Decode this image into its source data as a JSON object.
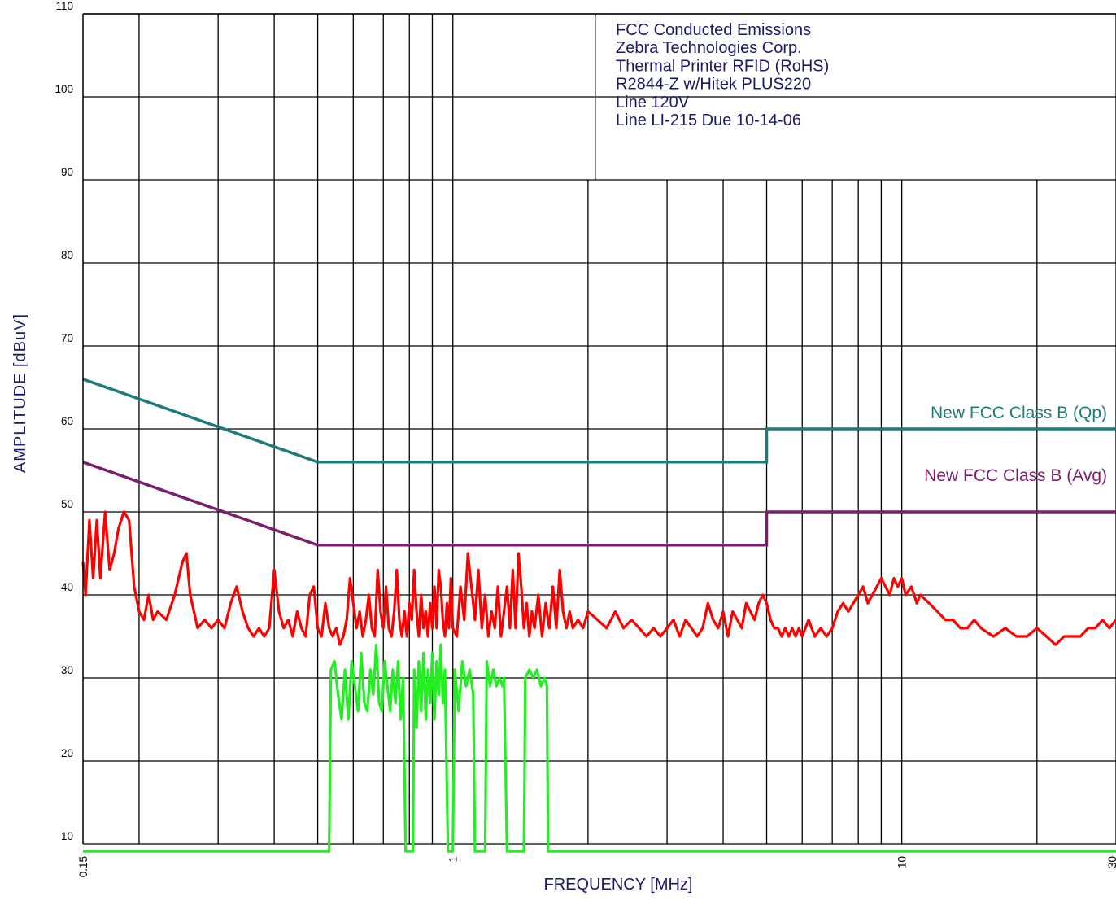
{
  "chart_data": {
    "type": "line",
    "title_lines": [
      "FCC Conducted Emissions",
      "Zebra Technologies Corp.",
      "Thermal Printer RFID (RoHS)",
      "R2844-Z w/Hitek PLUS220",
      "Line 120V",
      "Line LI-215 Due 10-14-06"
    ],
    "xlabel": "FREQUENCY [MHz]",
    "ylabel": "AMPLITUDE [dBuV]",
    "x_scale": "log",
    "xlim": [
      0.15,
      30
    ],
    "ylim": [
      10,
      110
    ],
    "grid": true,
    "y_ticks": [
      "10",
      "20",
      "30",
      "40",
      "50",
      "60",
      "70",
      "80",
      "90",
      "100",
      "110"
    ],
    "x_tick_labels": [
      {
        "value": 0.15,
        "label": "0.15"
      },
      {
        "value": 1,
        "label": "1"
      },
      {
        "value": 10,
        "label": "10"
      },
      {
        "value": 30,
        "label": "30"
      }
    ],
    "limit_lines": [
      {
        "name": "New FCC Class B (Qp)",
        "color": "#1f7a7a",
        "points": [
          [
            0.15,
            66
          ],
          [
            0.5,
            56
          ],
          [
            5,
            56
          ],
          [
            5,
            60
          ],
          [
            30,
            60
          ]
        ]
      },
      {
        "name": "New FCC Class B (Avg)",
        "color": "#7a1f6e",
        "points": [
          [
            0.15,
            56
          ],
          [
            0.5,
            46
          ],
          [
            5,
            46
          ],
          [
            5,
            50
          ],
          [
            30,
            50
          ]
        ]
      }
    ],
    "series": [
      {
        "color": "#ff0000",
        "points": [
          [
            0.15,
            44
          ],
          [
            0.152,
            40
          ],
          [
            0.155,
            49
          ],
          [
            0.158,
            42
          ],
          [
            0.161,
            49
          ],
          [
            0.164,
            42
          ],
          [
            0.168,
            50
          ],
          [
            0.172,
            43
          ],
          [
            0.176,
            45
          ],
          [
            0.18,
            48
          ],
          [
            0.185,
            50
          ],
          [
            0.19,
            49
          ],
          [
            0.195,
            41
          ],
          [
            0.2,
            38
          ],
          [
            0.205,
            37
          ],
          [
            0.21,
            40
          ],
          [
            0.215,
            37
          ],
          [
            0.22,
            38
          ],
          [
            0.23,
            37
          ],
          [
            0.24,
            40
          ],
          [
            0.25,
            44
          ],
          [
            0.255,
            45
          ],
          [
            0.26,
            40
          ],
          [
            0.265,
            38
          ],
          [
            0.27,
            36
          ],
          [
            0.28,
            37
          ],
          [
            0.29,
            36
          ],
          [
            0.3,
            37
          ],
          [
            0.31,
            36
          ],
          [
            0.32,
            39
          ],
          [
            0.33,
            41
          ],
          [
            0.34,
            38
          ],
          [
            0.35,
            36
          ],
          [
            0.36,
            35
          ],
          [
            0.37,
            36
          ],
          [
            0.38,
            35
          ],
          [
            0.39,
            36
          ],
          [
            0.4,
            43
          ],
          [
            0.41,
            38
          ],
          [
            0.42,
            36
          ],
          [
            0.43,
            37
          ],
          [
            0.44,
            35
          ],
          [
            0.45,
            38
          ],
          [
            0.46,
            36
          ],
          [
            0.47,
            35
          ],
          [
            0.48,
            40
          ],
          [
            0.49,
            41
          ],
          [
            0.5,
            36
          ],
          [
            0.51,
            35
          ],
          [
            0.52,
            39
          ],
          [
            0.53,
            36
          ],
          [
            0.54,
            35
          ],
          [
            0.55,
            36
          ],
          [
            0.56,
            34
          ],
          [
            0.57,
            35
          ],
          [
            0.58,
            37
          ],
          [
            0.59,
            42
          ],
          [
            0.6,
            39
          ],
          [
            0.61,
            36
          ],
          [
            0.62,
            38
          ],
          [
            0.63,
            35
          ],
          [
            0.64,
            37
          ],
          [
            0.65,
            40
          ],
          [
            0.66,
            36
          ],
          [
            0.67,
            35
          ],
          [
            0.68,
            43
          ],
          [
            0.69,
            38
          ],
          [
            0.7,
            36
          ],
          [
            0.71,
            41
          ],
          [
            0.72,
            36
          ],
          [
            0.73,
            35
          ],
          [
            0.74,
            38
          ],
          [
            0.75,
            43
          ],
          [
            0.76,
            37
          ],
          [
            0.77,
            35
          ],
          [
            0.78,
            38
          ],
          [
            0.79,
            35
          ],
          [
            0.8,
            39
          ],
          [
            0.81,
            37
          ],
          [
            0.82,
            43
          ],
          [
            0.83,
            38
          ],
          [
            0.84,
            35
          ],
          [
            0.85,
            40
          ],
          [
            0.86,
            36
          ],
          [
            0.87,
            38
          ],
          [
            0.88,
            35
          ],
          [
            0.89,
            39
          ],
          [
            0.9,
            36
          ],
          [
            0.91,
            41
          ],
          [
            0.92,
            36
          ],
          [
            0.93,
            43
          ],
          [
            0.94,
            41
          ],
          [
            0.95,
            37
          ],
          [
            0.96,
            35
          ],
          [
            0.97,
            39
          ],
          [
            0.98,
            36
          ],
          [
            0.99,
            42
          ],
          [
            1.0,
            36
          ],
          [
            1.02,
            35
          ],
          [
            1.04,
            41
          ],
          [
            1.06,
            37
          ],
          [
            1.08,
            45
          ],
          [
            1.1,
            41
          ],
          [
            1.12,
            37
          ],
          [
            1.14,
            43
          ],
          [
            1.16,
            36
          ],
          [
            1.18,
            40
          ],
          [
            1.2,
            35
          ],
          [
            1.22,
            38
          ],
          [
            1.24,
            36
          ],
          [
            1.26,
            41
          ],
          [
            1.28,
            35
          ],
          [
            1.3,
            38
          ],
          [
            1.32,
            41
          ],
          [
            1.34,
            36
          ],
          [
            1.36,
            43
          ],
          [
            1.38,
            36
          ],
          [
            1.4,
            45
          ],
          [
            1.42,
            41
          ],
          [
            1.44,
            36
          ],
          [
            1.46,
            39
          ],
          [
            1.48,
            35
          ],
          [
            1.5,
            38
          ],
          [
            1.52,
            36
          ],
          [
            1.55,
            40
          ],
          [
            1.58,
            35
          ],
          [
            1.61,
            39
          ],
          [
            1.64,
            36
          ],
          [
            1.67,
            41
          ],
          [
            1.7,
            36
          ],
          [
            1.73,
            43
          ],
          [
            1.76,
            38
          ],
          [
            1.79,
            36
          ],
          [
            1.82,
            38
          ],
          [
            1.85,
            36
          ],
          [
            1.9,
            37
          ],
          [
            1.95,
            36
          ],
          [
            2.0,
            38
          ],
          [
            2.1,
            37
          ],
          [
            2.2,
            36
          ],
          [
            2.3,
            38
          ],
          [
            2.4,
            36
          ],
          [
            2.5,
            37
          ],
          [
            2.6,
            36
          ],
          [
            2.7,
            35
          ],
          [
            2.8,
            36
          ],
          [
            2.9,
            35
          ],
          [
            3.0,
            36
          ],
          [
            3.1,
            37
          ],
          [
            3.2,
            35
          ],
          [
            3.3,
            37
          ],
          [
            3.4,
            36
          ],
          [
            3.5,
            35
          ],
          [
            3.6,
            36
          ],
          [
            3.7,
            39
          ],
          [
            3.8,
            37
          ],
          [
            3.9,
            36
          ],
          [
            4.0,
            38
          ],
          [
            4.1,
            35
          ],
          [
            4.2,
            38
          ],
          [
            4.3,
            37
          ],
          [
            4.4,
            36
          ],
          [
            4.5,
            39
          ],
          [
            4.6,
            38
          ],
          [
            4.7,
            37
          ],
          [
            4.8,
            39
          ],
          [
            4.9,
            40
          ],
          [
            5.0,
            39
          ],
          [
            5.1,
            37
          ],
          [
            5.2,
            36
          ],
          [
            5.3,
            36
          ],
          [
            5.4,
            35
          ],
          [
            5.5,
            36
          ],
          [
            5.6,
            35
          ],
          [
            5.7,
            36
          ],
          [
            5.8,
            35
          ],
          [
            5.9,
            36
          ],
          [
            6.0,
            35
          ],
          [
            6.2,
            37
          ],
          [
            6.4,
            35
          ],
          [
            6.6,
            36
          ],
          [
            6.8,
            35
          ],
          [
            7.0,
            36
          ],
          [
            7.2,
            38
          ],
          [
            7.4,
            39
          ],
          [
            7.6,
            38
          ],
          [
            7.8,
            39
          ],
          [
            8.0,
            40
          ],
          [
            8.2,
            41
          ],
          [
            8.4,
            39
          ],
          [
            8.6,
            40
          ],
          [
            8.8,
            41
          ],
          [
            9.0,
            42
          ],
          [
            9.2,
            41
          ],
          [
            9.4,
            40
          ],
          [
            9.6,
            42
          ],
          [
            9.8,
            41
          ],
          [
            10.0,
            42
          ],
          [
            10.2,
            40
          ],
          [
            10.5,
            41
          ],
          [
            10.8,
            39
          ],
          [
            11.0,
            40
          ],
          [
            11.5,
            39
          ],
          [
            12.0,
            38
          ],
          [
            12.5,
            37
          ],
          [
            13.0,
            37
          ],
          [
            13.5,
            36
          ],
          [
            14.0,
            36
          ],
          [
            14.5,
            37
          ],
          [
            15.0,
            36
          ],
          [
            16.0,
            35
          ],
          [
            17.0,
            36
          ],
          [
            18.0,
            35
          ],
          [
            19.0,
            35
          ],
          [
            20.0,
            36
          ],
          [
            21.0,
            35
          ],
          [
            22.0,
            34
          ],
          [
            23.0,
            35
          ],
          [
            24.0,
            35
          ],
          [
            25.0,
            35
          ],
          [
            26.0,
            36
          ],
          [
            27.0,
            36
          ],
          [
            28.0,
            37
          ],
          [
            29.0,
            36
          ],
          [
            30.0,
            37
          ]
        ]
      },
      {
        "color": "#22ee22",
        "points": [
          [
            0.15,
            9.1
          ],
          [
            0.53,
            9.1
          ],
          [
            0.535,
            31
          ],
          [
            0.545,
            32
          ],
          [
            0.555,
            28
          ],
          [
            0.565,
            25
          ],
          [
            0.575,
            31
          ],
          [
            0.585,
            25
          ],
          [
            0.595,
            32
          ],
          [
            0.605,
            29
          ],
          [
            0.615,
            26
          ],
          [
            0.625,
            33
          ],
          [
            0.635,
            27
          ],
          [
            0.645,
            26
          ],
          [
            0.655,
            31
          ],
          [
            0.665,
            28
          ],
          [
            0.675,
            34
          ],
          [
            0.685,
            27
          ],
          [
            0.695,
            26
          ],
          [
            0.705,
            32
          ],
          [
            0.715,
            29
          ],
          [
            0.725,
            26
          ],
          [
            0.735,
            31
          ],
          [
            0.745,
            27
          ],
          [
            0.755,
            32
          ],
          [
            0.765,
            25
          ],
          [
            0.775,
            30
          ],
          [
            0.785,
            9.1
          ],
          [
            0.8,
            9.1
          ],
          [
            0.815,
            9.1
          ],
          [
            0.82,
            31
          ],
          [
            0.83,
            24
          ],
          [
            0.84,
            32
          ],
          [
            0.85,
            26
          ],
          [
            0.86,
            33
          ],
          [
            0.87,
            25
          ],
          [
            0.88,
            31
          ],
          [
            0.89,
            27
          ],
          [
            0.9,
            33
          ],
          [
            0.91,
            25
          ],
          [
            0.92,
            32
          ],
          [
            0.93,
            28
          ],
          [
            0.94,
            34
          ],
          [
            0.95,
            27
          ],
          [
            0.96,
            31
          ],
          [
            0.975,
            9.1
          ],
          [
            0.99,
            9.1
          ],
          [
            1.0,
            9.1
          ],
          [
            1.01,
            31
          ],
          [
            1.03,
            26
          ],
          [
            1.05,
            32
          ],
          [
            1.07,
            29
          ],
          [
            1.09,
            31
          ],
          [
            1.11,
            28
          ],
          [
            1.12,
            9.1
          ],
          [
            1.18,
            9.1
          ],
          [
            1.19,
            32
          ],
          [
            1.21,
            29
          ],
          [
            1.23,
            31
          ],
          [
            1.25,
            29
          ],
          [
            1.27,
            30
          ],
          [
            1.29,
            29
          ],
          [
            1.3,
            30
          ],
          [
            1.32,
            9.1
          ],
          [
            1.44,
            9.1
          ],
          [
            1.45,
            30
          ],
          [
            1.48,
            31
          ],
          [
            1.51,
            30
          ],
          [
            1.54,
            31
          ],
          [
            1.57,
            29
          ],
          [
            1.6,
            30
          ],
          [
            1.62,
            29
          ],
          [
            1.63,
            9.1
          ],
          [
            30.0,
            9.1
          ]
        ]
      }
    ]
  }
}
